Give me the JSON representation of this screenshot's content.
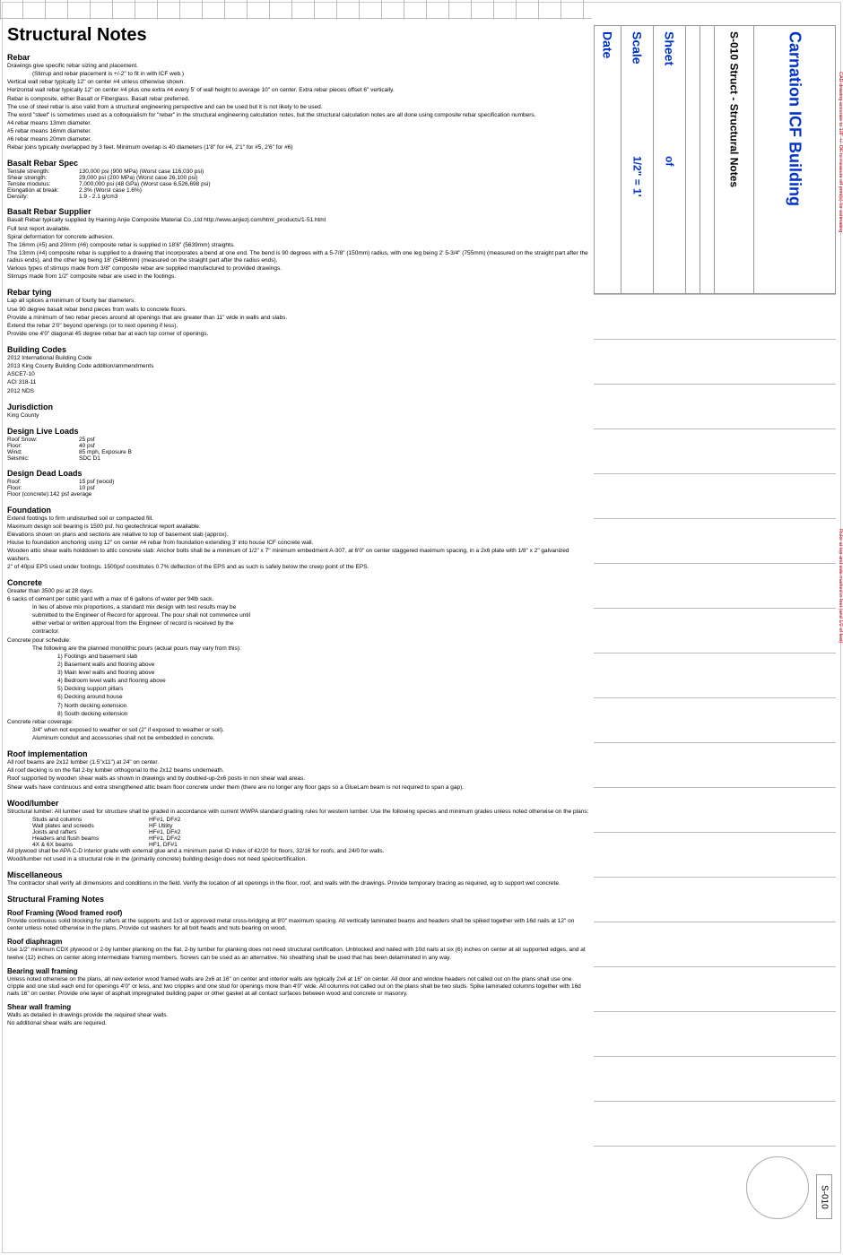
{
  "page": {
    "title": "Structural Notes",
    "sheet_code": "S-010"
  },
  "titleblock": {
    "date_label": "Date",
    "scale_label": "Scale",
    "scale_value": "1/2\" = 1'",
    "sheet_label": "Sheet",
    "sheet_value": "of",
    "sheet_name": "S-010 Struct - Structural Notes",
    "project": "Carnation ICF Building"
  },
  "edge_notes": {
    "note1": "CAD drawing accurate to 1/8\" +/- DK to measure off print(s) for estimating",
    "note2": "Ruler at top and side marked in feet (and 1/2 of feet)"
  },
  "rebar": {
    "heading": "Rebar",
    "lines": [
      "Drawings give specific rebar sizing and placement.",
      "(Stirrup and rebar placement is +/-2\" to fit in with ICF web.)",
      "Vertical wall rebar typically 12\" on center #4 unless otherwise shown.",
      "Horizontal wall rebar typically 12\" on center #4 plus one extra #4 every 5' of wall height to average 10\" on center.  Extra rebar pieces offset 6\" vertically.",
      "Rebar is composite, either Basalt or Fiberglass.  Basalt rebar preferred.",
      "The use of steel rebar is also valid from a structural engineering perspective and can be used but it is not likely to be used.",
      "The word \"steel\" is sometimes used as a colloquialism for \"rebar\" in the structural engineering calculation notes, but the structural calculation notes are all done using composite rebar specification numbers.",
      "#4 rebar means 13mm diameter.",
      "#5 rebar means 16mm diameter.",
      "#6 rebar means 20mm diameter.",
      "Rebar joins typically overlapped by 3 feet.  Minimum overlap is 40 diameters (1'8\" for #4, 2'1\" for #5, 2'6\" for #6)"
    ]
  },
  "basalt_spec": {
    "heading": "Basalt Rebar Spec",
    "rows": [
      {
        "label": "Tensile strength:",
        "val": "130,000 psi  (900 MPa) (Worst case 116,030 psi)"
      },
      {
        "label": "Shear strength:",
        "val": "29,000 psi  (200 MPa) (Worst case 26,100 psi)"
      },
      {
        "label": "Tensile modulus:",
        "val": "7,000,000 psi  (48 GPa) (Worst case 6,526,698 psi)"
      },
      {
        "label": "Elongation at break:",
        "val": "2.3% (Worst case 1.6%)"
      },
      {
        "label": "Density:",
        "val": "1.9 - 2.1 g/cm3"
      }
    ]
  },
  "basalt_supplier": {
    "heading": "Basalt Rebar Supplier",
    "lines": [
      "Basalt Rebar typically supplied by Haining Anjie Composite Material Co.,Ltd  http://www.anjiezj.com/html_products/1-51.html",
      "Full test report available.",
      "Spiral deformation for concrete adhesion.",
      "The 16mm (#5) and 20mm (#6) composite rebar is supplied in 18'6\" (5639mm) straights.",
      "The 13mm (#4) composite rebar is supplied to a drawing that incorporates a bend at one end.  The bend is 90 degrees with a 5-7/8\" (150mm) radius, with one leg being 2' 5-3/4\" (755mm) (measured on the straight part after the radius ends), and the other leg being 18' (5486mm) (measured on the straight part after the radius ends).",
      "Various types of stirrups made from 3/8\" composite rebar are supplied manufactured  to provided drawings.",
      "Stirrups made from 1/2\" composite rebar are used in the footings."
    ]
  },
  "rebar_tying": {
    "heading": "Rebar tying",
    "lines": [
      "Lap all splices a minimum of fourty bar diameters.",
      "Use 90 degree basalt rebar bend pieces from walls to concrete floors.",
      "Provide a minimum of two rebar pieces around all openings that are greater than 11\" wide in walls and slabs.",
      "Extend the rebar 2'0\" beyond openings (or to next opening if less).",
      "Provide one 4'0\" diagonal 45 degree rebar bar at each top corner of openings."
    ]
  },
  "codes": {
    "heading": "Building Codes",
    "lines": [
      "2012 International Building Code",
      "2013 King County Building Code addition/ammendments",
      "ASCE7-10",
      "ACI 318-11",
      "2012 NDS"
    ]
  },
  "jurisdiction": {
    "heading": "Jurisdiction",
    "lines": [
      "King County"
    ]
  },
  "live_loads": {
    "heading": "Design Live Loads",
    "rows": [
      {
        "label": "Roof Snow:",
        "val": "25 psf"
      },
      {
        "label": "Floor:",
        "val": "40 psf"
      },
      {
        "label": "Wind:",
        "val": "85 mph, Exposure B"
      },
      {
        "label": "Seismic:",
        "val": "SDC D1"
      }
    ]
  },
  "dead_loads": {
    "heading": "Design Dead Loads",
    "rows": [
      {
        "label": "Roof:",
        "val": "15 psf (wood)"
      },
      {
        "label": "Floor:",
        "val": "10 psf"
      }
    ],
    "extra": "Floor (concrete):142 psf average"
  },
  "foundation": {
    "heading": "Foundation",
    "lines": [
      "Extend footings to firm undisturbed soil or compacted fill.",
      "Maximum design soil bearing is 1500 psf.  No geotechnical report available.",
      "Elevations shown on plans and sections are relative to top of basement slab (approx).",
      "House to foundation anchoring using 12\" on center #4 rebar from foundation extending 3' into house ICF concrete wall.",
      "Wooden attic shear walls holddown to attic concrete slab:  Anchor bolts shall be a minimum of 1/2\" x 7\" minimum embedment A-307, at 6'0\" on center staggered maximum spacing, in a 2x6 plate with 1/8\" x 2\" galvanized washers.",
      "2\" of 40psi EPS used under footings.  1500psf constitutes 0.7% deflection of the EPS and as such is safely below the creep point of the EPS."
    ]
  },
  "concrete": {
    "heading": "Concrete",
    "intro": [
      "Greater than 3500 psi at 28 days.",
      "6 sacks of cement per cubic yard with a max of 6 gallons of water per 94lb sack."
    ],
    "mix_note": [
      "In lieu of above mix proportions, a standard mix design with test results may be",
      "submitted to the Engineer of Record for approval.  The pour shall not commence until",
      "either verbal or written approval from the Engineer of record is received by the",
      "contractor."
    ],
    "pour_label": "Concrete pour schedule:",
    "pour_intro": "The following are the planned monolithic pours (actual pours may vary from this):",
    "pours": [
      "1)  Footings and basement slab",
      "2)  Basement walls and flooring above",
      "3)  Main level walls and flooring above",
      "4)  Bedroom level walls and flooring above",
      "5)  Decking support pillars",
      "6)  Decking around house",
      "7)  North decking extension",
      "8)  South decking extension"
    ],
    "cover_label": "Concrete rebar coverage:",
    "cover_lines": [
      "3/4\" when not exposed to weather or soil (2\" if exposed to weather or soil).",
      "Aluminum conduit and accessories shall not be embedded in concrete."
    ]
  },
  "roof_impl": {
    "heading": "Roof implementation",
    "lines": [
      "All roof beams are 2x12 lumber (1.5\"x11\") at 24\" on center.",
      "All roof decking is on the flat 2-by lumber orthogonal to the 2x12 beams underneath.",
      "Roof supported by wooden shear walls as shown in drawings and by doubled-up-2x6 posts in non shear wall areas.",
      "Shear walls have continuous and extra strengthened attic beam floor concrete under them (there are no longer any floor gaps so a GlueLam beam is not required to span a gap)."
    ]
  },
  "wood": {
    "heading": "Wood/lumber",
    "intro": "Structural lumber:  All lumber used for structure shall be graded in accordance with current WWPA standard grading rules for western lumber.  Use the following species and minimum grades unless noted otherwise on the plans:",
    "rows": [
      {
        "label": "Studs and columns",
        "val": "HF#1, DF#2"
      },
      {
        "label": "Wall plates and screeds",
        "val": "HF Utility"
      },
      {
        "label": "Joists and rafters",
        "val": "HF#1, DF#2"
      },
      {
        "label": "Headers and flush beams",
        "val": "HF#1, DF#2"
      },
      {
        "label": "4X & 6X beams",
        "val": "HF1, DF#1"
      }
    ],
    "outro": [
      "All plywood shall be APA C-D interior grade with external glue and a minimum panel ID index of 42/20 for floors, 32/16 for roofs, and 24/0 for walls.",
      "Wood/lumber not used in a structural role in the (primarily concrete) building design does not need spec/certification."
    ]
  },
  "misc": {
    "heading": "Miscellaneous",
    "lines": [
      "The contractor shall verify all dimensions and conditions in the field.  Verify the location of all openings in the floor, roof, and walls with the drawings.  Provide temporary bracing as required, eg to support wet concrete."
    ]
  },
  "framing": {
    "heading": "Structural Framing Notes",
    "roof_h": "Roof Framing (Wood framed roof)",
    "roof_lines": [
      "Provide continuous solid blocking for rafters at the supports and 1x3 or approved metal cross-bridging at 8'0\" maximum spacing.  All vertically laminated beams and headers shall be spiked together with 16d nails at 12\" on center unless noted otherwise in the plans.  Provide cut washers for all bolt heads and nuts bearing on wood."
    ],
    "diaph_h": "Roof diaphragm",
    "diaph_lines": [
      "Use 1/2\" minimum CDX plywood or 2-by lumber planking on the flat.  2-by lumber for planking does not need structural certification.  Unblocked and nailed with 10d nails at six (6) inches on center at all supported edges, and at twelve (12) inches on center along intermediate framing members.  Screws can be used as an alternative.  No sheathing shall be used that has been delaminated in any way."
    ],
    "bearing_h": "Bearing wall framing",
    "bearing_lines": [
      "Unless noted otherwise on the plans, all new exterior wood framed walls are 2x6 at 16\" on center and interior walls are typically 2x4 at 16\" on center.  All door and window headers not called out on the plans shall use one cripple and one stud each end for openings 4'0\" or less, and two cripples and one stud for openings more than 4'0\" wide.  All columns not called out on the plans shall be two studs.  Spike laminated columns together with 16d nails 16\" on center.  Provide one layer of asphalt impregnated building paper or other gasket at all contact surfaces between wood and concrete or masonry."
    ],
    "shear_h": "Shear wall framing",
    "shear_lines": [
      "Walls as detailed in drawings provide the required shear walls.",
      "No additional shear walls are required."
    ]
  },
  "style": {
    "grid_color": "#bbb",
    "border_color": "#999",
    "blue": "#0033cc",
    "red": "#c00"
  }
}
